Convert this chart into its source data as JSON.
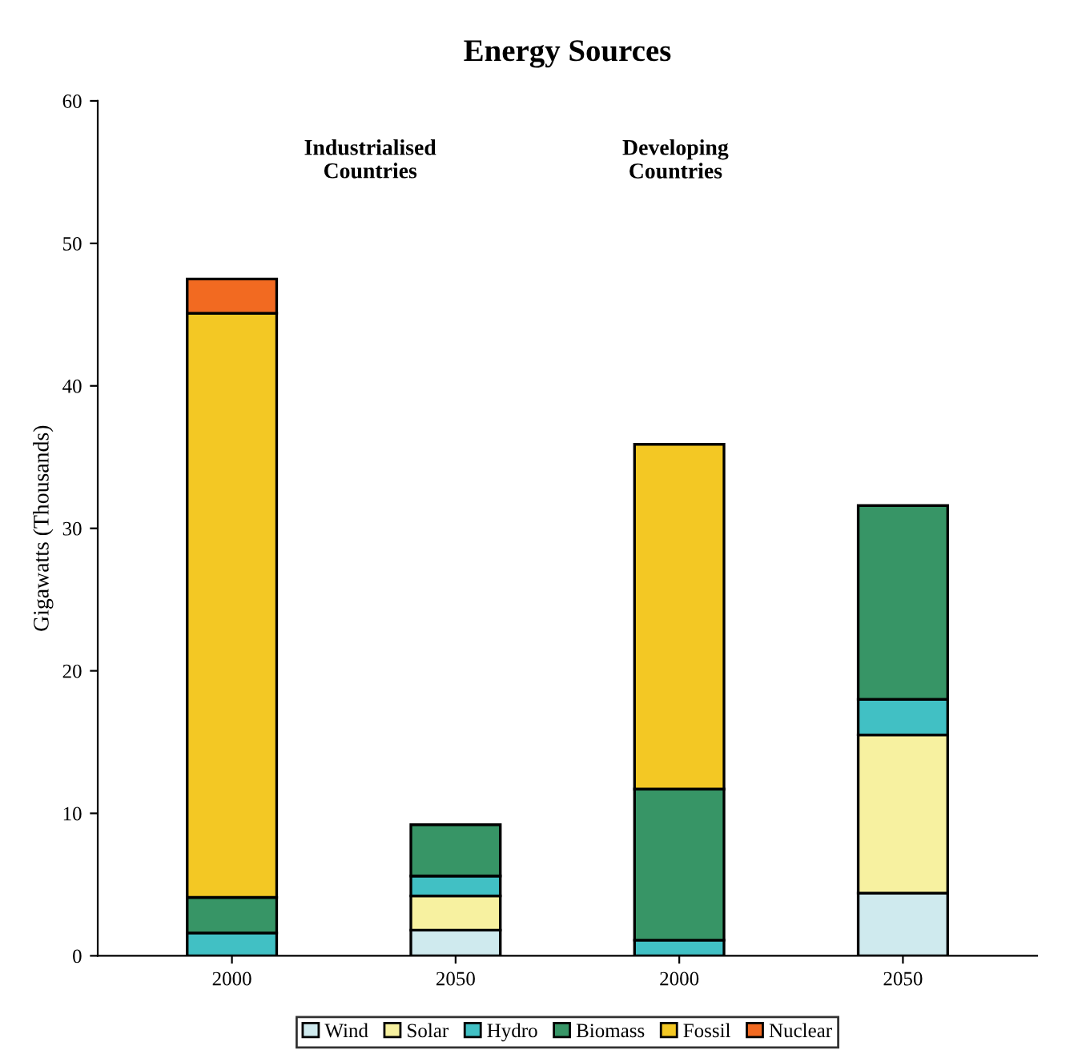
{
  "chart_data": {
    "type": "bar",
    "title": "Energy Sources",
    "ylabel": "Gigawatts (Thousands)",
    "categories": [
      "2000",
      "2050",
      "2000",
      "2050"
    ],
    "stacked": true,
    "series": [
      {
        "name": "Wind",
        "color": "#cfeaee",
        "values": [
          0,
          1.8,
          0,
          4.4
        ]
      },
      {
        "name": "Solar",
        "color": "#f7f1a0",
        "values": [
          0,
          2.4,
          0,
          11.1
        ]
      },
      {
        "name": "Hydro",
        "color": "#41c0c4",
        "values": [
          1.6,
          1.4,
          1.1,
          2.5
        ]
      },
      {
        "name": "Biomass",
        "color": "#379566",
        "values": [
          2.5,
          3.6,
          10.6,
          13.6
        ]
      },
      {
        "name": "Fossil",
        "color": "#f3c824",
        "values": [
          41,
          0,
          24.2,
          0
        ]
      },
      {
        "name": "Nuclear",
        "color": "#f26a21",
        "values": [
          2.4,
          0,
          0,
          0
        ]
      }
    ],
    "annotations": [
      "Industrialised\nCountries",
      "Developing\nCountries"
    ],
    "ylim": [
      0,
      60
    ],
    "yticks": [
      0,
      10,
      20,
      30,
      40,
      50,
      60
    ],
    "grid": false,
    "legend": "bottom"
  }
}
